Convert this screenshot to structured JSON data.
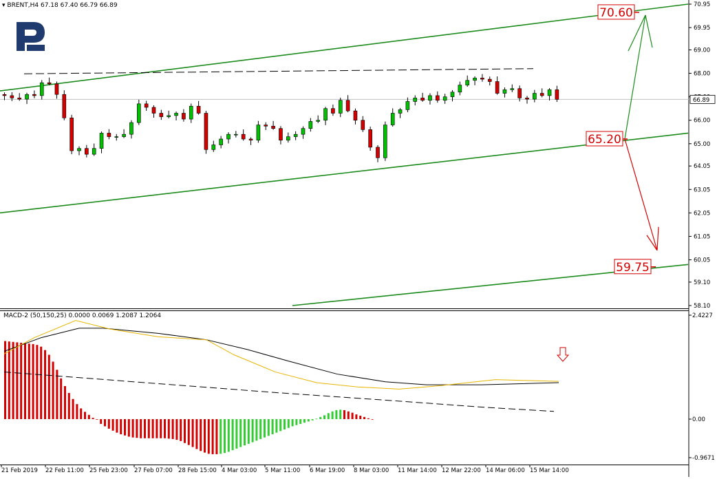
{
  "header": {
    "symbol_line": "BRENT,H4  67.18 67.40 66.79 66.89",
    "macd_line": "MACD-2 (50,150,25) 0.0000 0.0069 1.2087 1.2064"
  },
  "colors": {
    "bull": "#00c000",
    "bear": "#d40000",
    "channel": "#1a8a1a",
    "signal": "#e8b400",
    "logo": "#1f3a6e",
    "arrow_up": "#1a8a1a",
    "arrow_down": "#d40000"
  },
  "chart_data": {
    "type": "candlestick",
    "symbol": "BRENT",
    "timeframe": "H4",
    "ohlc_last": {
      "open": 67.18,
      "high": 67.4,
      "low": 66.79,
      "close": 66.89
    },
    "current_price": 66.89,
    "price_axis": {
      "min": 58.1,
      "max": 70.95,
      "ticks": [
        70.95,
        69.95,
        69.0,
        68.0,
        67.0,
        66.0,
        65.0,
        64.05,
        63.05,
        62.05,
        61.05,
        60.05,
        59.1,
        58.1
      ]
    },
    "x_labels": [
      "21 Feb 2019",
      "22 Feb 11:00",
      "25 Feb 23:00",
      "27 Feb 07:00",
      "28 Feb 15:00",
      "4 Mar 03:00",
      "5 Mar 11:00",
      "6 Mar 19:00",
      "8 Mar 03:00",
      "11 Mar 14:00",
      "12 Mar 22:00",
      "14 Mar 06:00",
      "15 Mar 14:00"
    ],
    "closes": [
      67.05,
      66.95,
      66.9,
      67.1,
      67.05,
      67.6,
      67.55,
      67.1,
      66.1,
      64.7,
      64.8,
      64.55,
      64.8,
      65.45,
      65.3,
      65.3,
      65.4,
      65.9,
      66.7,
      66.55,
      66.3,
      66.15,
      66.2,
      66.3,
      66.05,
      66.6,
      66.3,
      64.75,
      64.95,
      65.2,
      65.4,
      65.4,
      65.2,
      65.15,
      65.8,
      65.75,
      65.65,
      65.15,
      65.3,
      65.4,
      65.65,
      65.95,
      66.0,
      66.5,
      66.3,
      66.85,
      66.4,
      66.0,
      65.6,
      64.85,
      64.4,
      65.8,
      66.3,
      66.45,
      66.8,
      66.95,
      66.85,
      67.05,
      66.85,
      67.0,
      67.2,
      67.5,
      67.7,
      67.8,
      67.75,
      67.65,
      67.15,
      67.3,
      67.35,
      66.95,
      66.9,
      67.15,
      67.05,
      67.3,
      66.89
    ],
    "levels": [
      {
        "label": "70.60",
        "value": 70.6
      },
      {
        "label": "65.20",
        "value": 65.2
      },
      {
        "label": "59.75",
        "value": 59.75
      }
    ],
    "channel": {
      "upper": [
        {
          "x": 0,
          "price": 67.25
        },
        {
          "x": 1000,
          "price": 70.95
        }
      ],
      "middle": [
        {
          "x": 0,
          "price": 62.05
        },
        {
          "x": 1000,
          "price": 65.45
        }
      ],
      "lower": [
        {
          "x": 425,
          "price": 58.1
        },
        {
          "x": 1000,
          "price": 59.85
        }
      ]
    },
    "macd": {
      "title": "MACD-2 (50,150,25)",
      "axis": {
        "min": -0.9671,
        "max": 2.4227,
        "ticks": [
          "2.4227",
          "0.00",
          "-0.9671"
        ]
      },
      "histogram": [
        1.82,
        1.81,
        1.8,
        1.79,
        1.78,
        1.77,
        1.76,
        1.75,
        1.73,
        1.69,
        1.61,
        1.5,
        1.34,
        1.15,
        0.95,
        0.77,
        0.61,
        0.47,
        0.35,
        0.25,
        0.17,
        0.1,
        0.03,
        0.0,
        -0.12,
        -0.18,
        -0.24,
        -0.29,
        -0.34,
        -0.38,
        -0.41,
        -0.44,
        -0.46,
        -0.47,
        -0.48,
        -0.48,
        -0.48,
        -0.48,
        -0.48,
        -0.48,
        -0.48,
        -0.49,
        -0.5,
        -0.52,
        -0.55,
        -0.6,
        -0.65,
        -0.7,
        -0.75,
        -0.8,
        -0.84,
        -0.87,
        -0.88,
        -0.88,
        -0.87,
        -0.85,
        -0.82,
        -0.78,
        -0.74,
        -0.7,
        -0.66,
        -0.62,
        -0.58,
        -0.54,
        -0.5,
        -0.46,
        -0.42,
        -0.38,
        -0.34,
        -0.3,
        -0.26,
        -0.22,
        -0.18,
        -0.15,
        -0.12,
        -0.09,
        -0.06,
        -0.03,
        0.01,
        0.05,
        0.09,
        0.14,
        0.18,
        0.21,
        0.22,
        0.21,
        0.18,
        0.15,
        0.11,
        0.08,
        0.05,
        0.02,
        0.0
      ],
      "histogram_colors": "mixed red/green",
      "has_macd_line": true,
      "has_signal_line": true,
      "has_trend_line": true
    }
  }
}
